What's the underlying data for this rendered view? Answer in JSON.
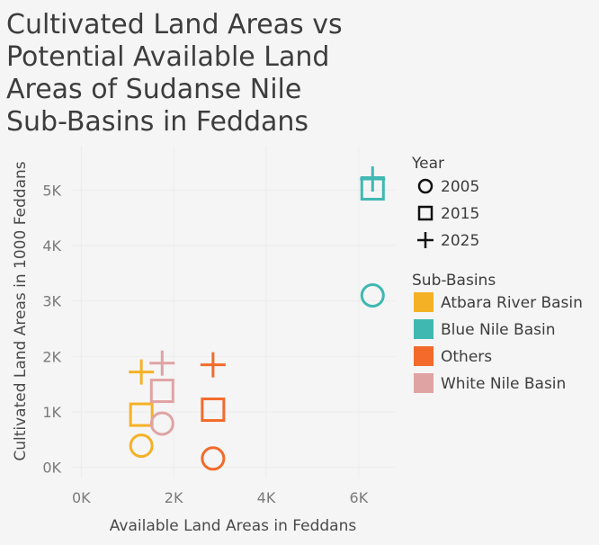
{
  "chart_data": {
    "type": "scatter",
    "title_lines": [
      "Cultivated Land Areas vs",
      "Potential Available Land",
      "Areas of Sudanse Nile",
      "Sub-Basins in Feddans"
    ],
    "xlabel": "Available Land Areas in Feddans",
    "ylabel": "Cultivated Land Areas in 1000 Feddans",
    "x_ticks": [
      {
        "value": 0,
        "label": "0K"
      },
      {
        "value": 2000,
        "label": "2K"
      },
      {
        "value": 4000,
        "label": "4K"
      },
      {
        "value": 6000,
        "label": "6K"
      }
    ],
    "y_ticks": [
      {
        "value": 0,
        "label": "0K"
      },
      {
        "value": 1000,
        "label": "1K"
      },
      {
        "value": 2000,
        "label": "2K"
      },
      {
        "value": 3000,
        "label": "3K"
      },
      {
        "value": 4000,
        "label": "4K"
      },
      {
        "value": 5000,
        "label": "5K"
      }
    ],
    "xlim": [
      -200,
      6800
    ],
    "ylim": [
      -200,
      5800
    ],
    "grid": true,
    "legend_position": "right",
    "year_legend": {
      "title": "Year",
      "entries": [
        {
          "label": "2005",
          "shape": "circle"
        },
        {
          "label": "2015",
          "shape": "square"
        },
        {
          "label": "2025",
          "shape": "cross"
        }
      ]
    },
    "basin_legend": {
      "title": "Sub-Basins",
      "entries": [
        {
          "label": "Atbara River Basin",
          "color": "#f5b126"
        },
        {
          "label": "Blue Nile Basin",
          "color": "#3fb8b2"
        },
        {
          "label": "Others",
          "color": "#f26b2b"
        },
        {
          "label": "White Nile Basin",
          "color": "#e0a3a3"
        }
      ]
    },
    "series": [
      {
        "name": "Atbara River Basin",
        "color": "#f5b126",
        "points": [
          {
            "year": "2005",
            "x": 1300,
            "y": 390
          },
          {
            "year": "2015",
            "x": 1300,
            "y": 950
          },
          {
            "year": "2025",
            "x": 1300,
            "y": 1720
          }
        ]
      },
      {
        "name": "Blue Nile Basin",
        "color": "#3fb8b2",
        "points": [
          {
            "year": "2005",
            "x": 6300,
            "y": 3100
          },
          {
            "year": "2015",
            "x": 6300,
            "y": 5030
          },
          {
            "year": "2025",
            "x": 6300,
            "y": 5200
          }
        ]
      },
      {
        "name": "Others",
        "color": "#f26b2b",
        "points": [
          {
            "year": "2005",
            "x": 2850,
            "y": 160
          },
          {
            "year": "2015",
            "x": 2850,
            "y": 1040
          },
          {
            "year": "2025",
            "x": 2850,
            "y": 1850
          }
        ]
      },
      {
        "name": "White Nile Basin",
        "color": "#e0a3a3",
        "points": [
          {
            "year": "2005",
            "x": 1750,
            "y": 790
          },
          {
            "year": "2015",
            "x": 1750,
            "y": 1380
          },
          {
            "year": "2025",
            "x": 1750,
            "y": 1880
          }
        ]
      }
    ]
  }
}
